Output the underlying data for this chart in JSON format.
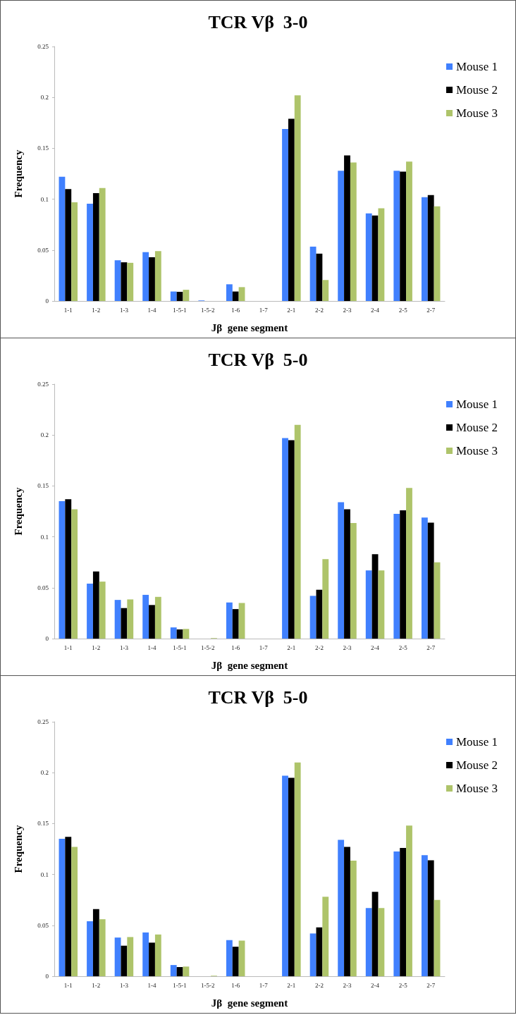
{
  "chart_data": [
    {
      "type": "bar",
      "title": "TCR Vβ  3-0",
      "xlabel": "Jβ  gene segment",
      "ylabel": "Frequency",
      "categories": [
        "1-1",
        "1-2",
        "1-3",
        "1-4",
        "1-5-1",
        "1-5-2",
        "1-6",
        "1-7",
        "2-1",
        "2-2",
        "2-3",
        "2-4",
        "2-5",
        "2-7"
      ],
      "ylim": [
        0,
        0.25
      ],
      "yticks": [
        0,
        0.05,
        0.1,
        0.15,
        0.2,
        0.25
      ],
      "grid": false,
      "legend": "top right",
      "series": [
        {
          "name": "Mouse 1",
          "color": "#4080fe",
          "values": [
            0.122,
            0.0955,
            0.04,
            0.048,
            0.0093,
            0.0005,
            0.0164,
            0,
            0.169,
            0.0534,
            0.128,
            0.086,
            0.128,
            0.102
          ]
        },
        {
          "name": "Mouse 2",
          "color": "#000000",
          "values": [
            0.11,
            0.106,
            0.038,
            0.043,
            0.009,
            0,
            0.0093,
            0,
            0.179,
            0.0465,
            0.143,
            0.084,
            0.127,
            0.104
          ]
        },
        {
          "name": "Mouse 3",
          "color": "#aec46a",
          "values": [
            0.097,
            0.111,
            0.0375,
            0.049,
            0.011,
            0,
            0.0136,
            0,
            0.202,
            0.0206,
            0.136,
            0.091,
            0.137,
            0.093
          ]
        }
      ]
    },
    {
      "type": "bar",
      "title": "TCR Vβ  5-0",
      "xlabel": "Jβ  gene segment",
      "ylabel": "Frequency",
      "categories": [
        "1-1",
        "1-2",
        "1-3",
        "1-4",
        "1-5-1",
        "1-5-2",
        "1-6",
        "1-7",
        "2-1",
        "2-2",
        "2-3",
        "2-4",
        "2-5",
        "2-7"
      ],
      "ylim": [
        0,
        0.25
      ],
      "yticks": [
        0,
        0.05,
        0.1,
        0.15,
        0.2,
        0.25
      ],
      "grid": false,
      "legend": "top right",
      "series": [
        {
          "name": "Mouse 1",
          "color": "#4080fe",
          "values": [
            0.135,
            0.054,
            0.038,
            0.043,
            0.011,
            0,
            0.0355,
            0,
            0.197,
            0.042,
            0.134,
            0.067,
            0.1225,
            0.119
          ]
        },
        {
          "name": "Mouse 2",
          "color": "#000000",
          "values": [
            0.137,
            0.066,
            0.03,
            0.033,
            0.009,
            0,
            0.029,
            0,
            0.195,
            0.048,
            0.127,
            0.083,
            0.126,
            0.114
          ]
        },
        {
          "name": "Mouse 3",
          "color": "#aec46a",
          "values": [
            0.127,
            0.056,
            0.0385,
            0.041,
            0.0095,
            0.0005,
            0.035,
            0,
            0.21,
            0.078,
            0.1135,
            0.067,
            0.148,
            0.075
          ]
        }
      ]
    },
    {
      "type": "bar",
      "title": "TCR Vβ  5-0",
      "xlabel": "Jβ  gene segment",
      "ylabel": "Frequency",
      "categories": [
        "1-1",
        "1-2",
        "1-3",
        "1-4",
        "1-5-1",
        "1-5-2",
        "1-6",
        "1-7",
        "2-1",
        "2-2",
        "2-3",
        "2-4",
        "2-5",
        "2-7"
      ],
      "ylim": [
        0,
        0.25
      ],
      "yticks": [
        0,
        0.05,
        0.1,
        0.15,
        0.2,
        0.25
      ],
      "grid": false,
      "legend": "top right",
      "series": [
        {
          "name": "Mouse 1",
          "color": "#4080fe",
          "values": [
            0.135,
            0.054,
            0.038,
            0.043,
            0.011,
            0,
            0.0355,
            0,
            0.197,
            0.042,
            0.134,
            0.067,
            0.1225,
            0.119
          ]
        },
        {
          "name": "Mouse 2",
          "color": "#000000",
          "values": [
            0.137,
            0.066,
            0.03,
            0.033,
            0.009,
            0,
            0.029,
            0,
            0.195,
            0.048,
            0.127,
            0.083,
            0.126,
            0.114
          ]
        },
        {
          "name": "Mouse 3",
          "color": "#aec46a",
          "values": [
            0.127,
            0.056,
            0.0385,
            0.041,
            0.0095,
            0.0005,
            0.035,
            0,
            0.21,
            0.078,
            0.1135,
            0.067,
            0.148,
            0.075
          ]
        }
      ]
    }
  ]
}
